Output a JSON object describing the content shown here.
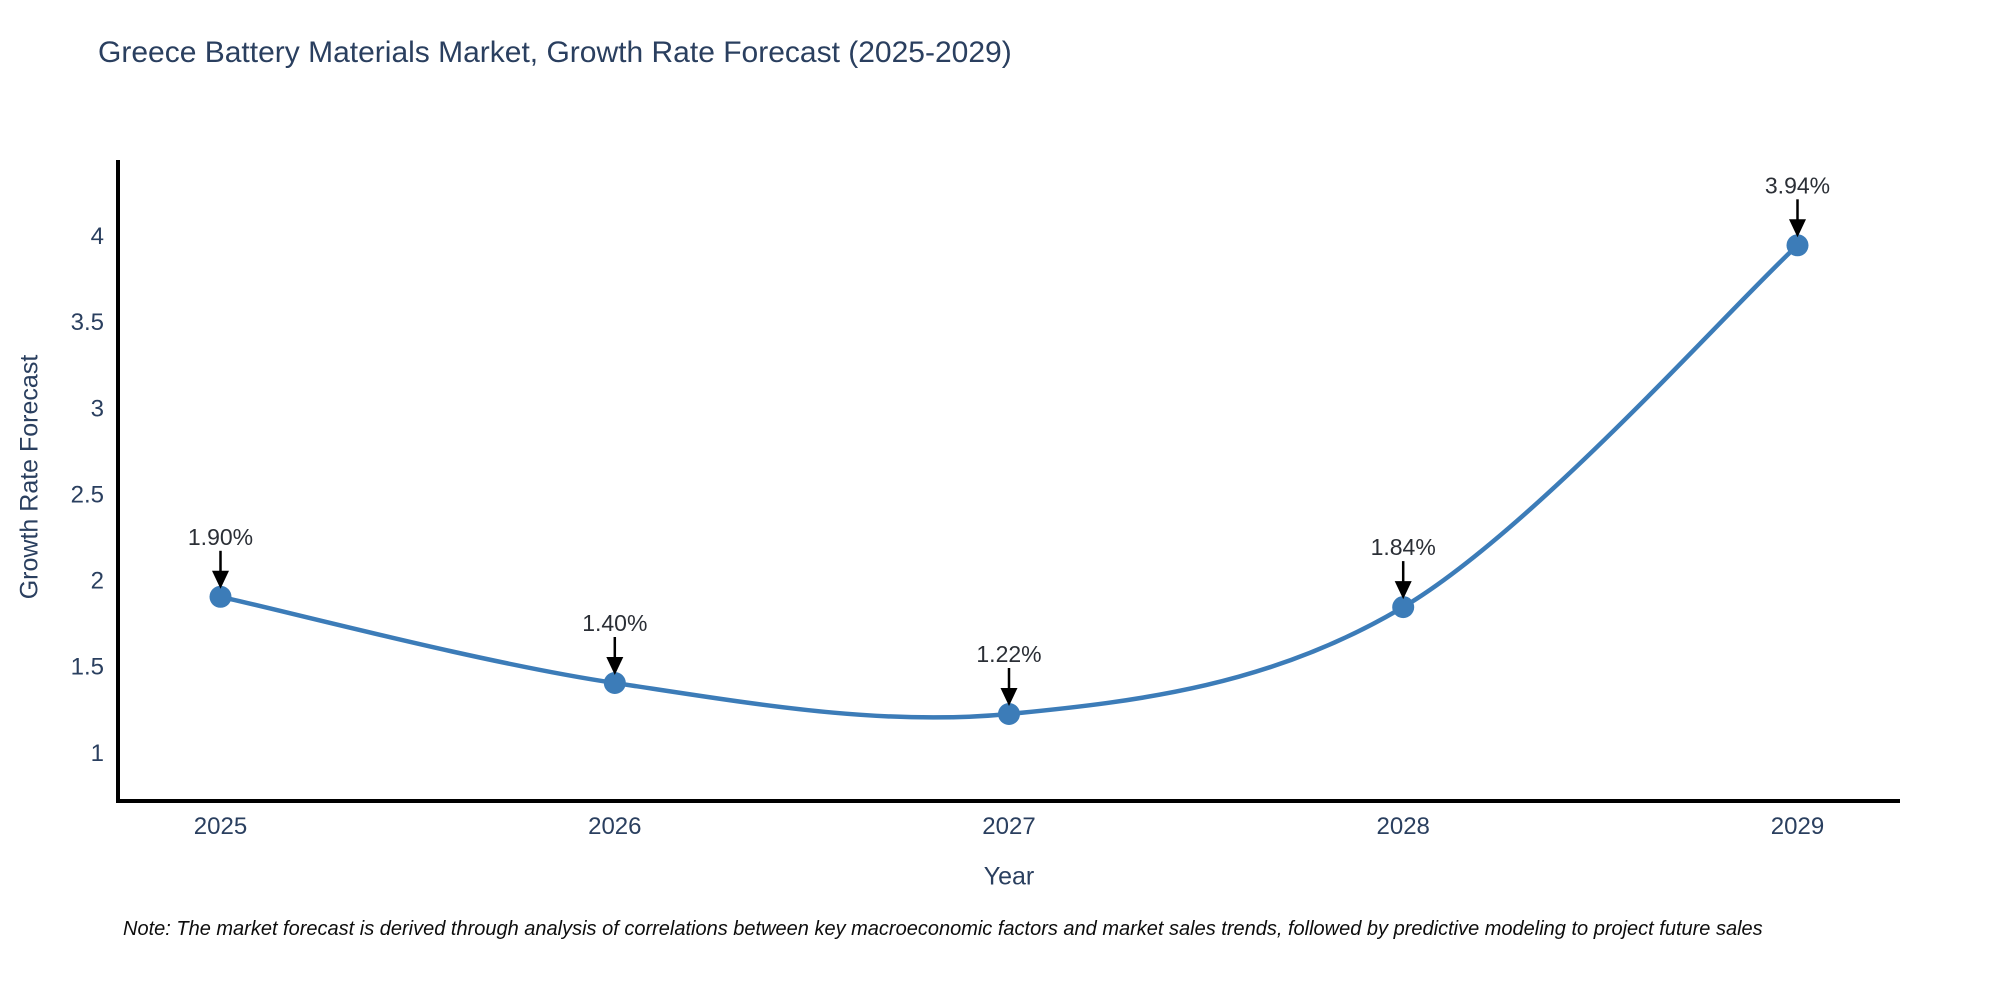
{
  "chart_data": {
    "type": "line",
    "title": "Greece Battery Materials Market, Growth Rate Forecast (2025-2029)",
    "xlabel": "Year",
    "ylabel": "Growth Rate Forecast",
    "x": [
      2025,
      2026,
      2027,
      2028,
      2029
    ],
    "y": [
      1.9,
      1.4,
      1.22,
      1.84,
      3.94
    ],
    "point_labels": [
      "1.90%",
      "1.40%",
      "1.22%",
      "1.84%",
      "3.94%"
    ],
    "xticks": [
      "2025",
      "2026",
      "2027",
      "2028",
      "2029"
    ],
    "yticks": [
      "1",
      "1.5",
      "2",
      "2.5",
      "3",
      "3.5",
      "4"
    ],
    "x_range": [
      2024.74,
      2029.26
    ],
    "y_range": [
      0.715,
      4.435
    ],
    "grid": false,
    "legend": false,
    "smooth": true,
    "line_color": "#3c7cb8",
    "marker_color": "#3c7cb8",
    "axis_color": "#000000",
    "tick_color": "#2a3f5f",
    "annotation_color": "#2b2f36",
    "arrow_color": "#000000",
    "note": "Note: The market forecast is derived through analysis of correlations between key macroeconomic factors and market sales trends, followed by predictive modeling to project future sales"
  }
}
